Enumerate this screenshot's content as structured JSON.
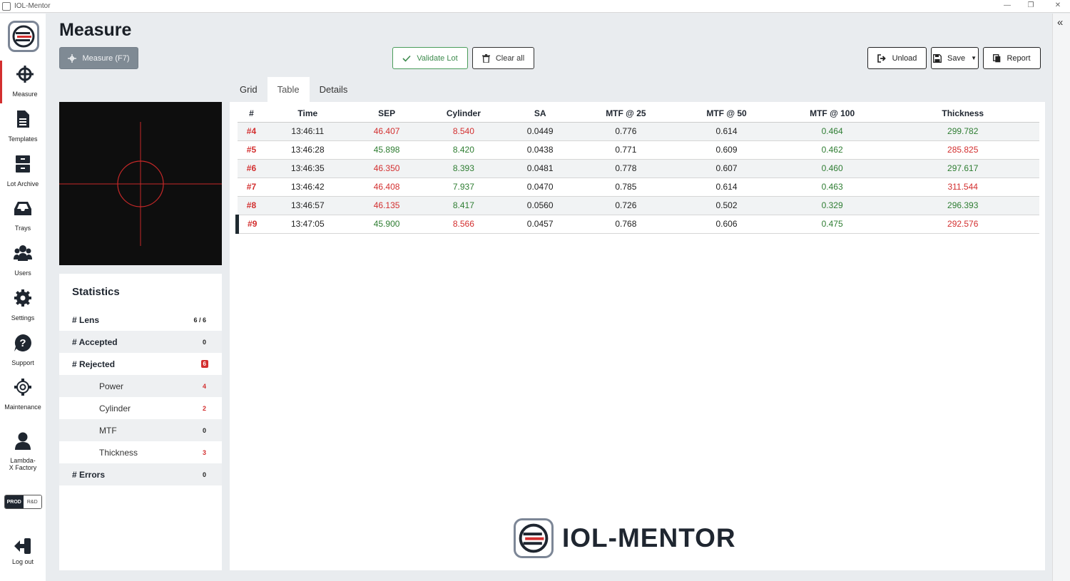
{
  "window": {
    "title": "IOL-Mentor"
  },
  "sidebar": {
    "items": [
      {
        "label": "Measure",
        "icon": "crosshair-icon"
      },
      {
        "label": "Templates",
        "icon": "document-icon"
      },
      {
        "label": "Lot Archive",
        "icon": "archive-icon"
      },
      {
        "label": "Trays",
        "icon": "tray-icon"
      },
      {
        "label": "Users",
        "icon": "users-icon"
      },
      {
        "label": "Settings",
        "icon": "gear-icon"
      },
      {
        "label": "Support",
        "icon": "question-icon"
      },
      {
        "label": "Maintenance",
        "icon": "gear-outline-icon"
      },
      {
        "label": "Lambda-X Factory",
        "icon": "user-icon"
      }
    ],
    "env": {
      "prod": "PROD",
      "rd": "R&D"
    },
    "logout": "Log out"
  },
  "header": {
    "title": "Measure"
  },
  "toolbar": {
    "measure": "Measure (F7)",
    "validate": "Validate Lot",
    "clear": "Clear all",
    "unload": "Unload",
    "save": "Save",
    "report": "Report"
  },
  "tabs": [
    "Grid",
    "Table",
    "Details"
  ],
  "active_tab": "Table",
  "statistics": {
    "title": "Statistics",
    "rows": [
      {
        "label": "# Lens",
        "value": "6 / 6"
      },
      {
        "label": "# Accepted",
        "value": "0"
      },
      {
        "label": "# Rejected",
        "value": "6"
      },
      {
        "label": "Power",
        "value": "4"
      },
      {
        "label": "Cylinder",
        "value": "2"
      },
      {
        "label": "MTF",
        "value": "0"
      },
      {
        "label": "Thickness",
        "value": "3"
      },
      {
        "label": "# Errors",
        "value": "0"
      }
    ]
  },
  "table": {
    "columns": [
      "#",
      "Time",
      "SEP",
      "Cylinder",
      "SA",
      "MTF @ 25",
      "MTF @ 50",
      "MTF @ 100",
      "Thickness"
    ],
    "rows": [
      [
        "#4",
        "13:46:11",
        "46.407",
        "8.540",
        "0.0449",
        "0.776",
        "0.614",
        "0.464",
        "299.782"
      ],
      [
        "#5",
        "13:46:28",
        "45.898",
        "8.420",
        "0.0438",
        "0.771",
        "0.609",
        "0.462",
        "285.825"
      ],
      [
        "#6",
        "13:46:35",
        "46.350",
        "8.393",
        "0.0481",
        "0.778",
        "0.607",
        "0.460",
        "297.617"
      ],
      [
        "#7",
        "13:46:42",
        "46.408",
        "7.937",
        "0.0470",
        "0.785",
        "0.614",
        "0.463",
        "311.544"
      ],
      [
        "#8",
        "13:46:57",
        "46.135",
        "8.417",
        "0.0560",
        "0.726",
        "0.502",
        "0.329",
        "296.393"
      ],
      [
        "#9",
        "13:47:05",
        "45.900",
        "8.566",
        "0.0457",
        "0.768",
        "0.606",
        "0.475",
        "292.576"
      ]
    ],
    "status_colors": {
      "red": "#d32f2f",
      "green": "#2e7d32"
    }
  },
  "brand": {
    "text": "IOL-MENTOR"
  }
}
